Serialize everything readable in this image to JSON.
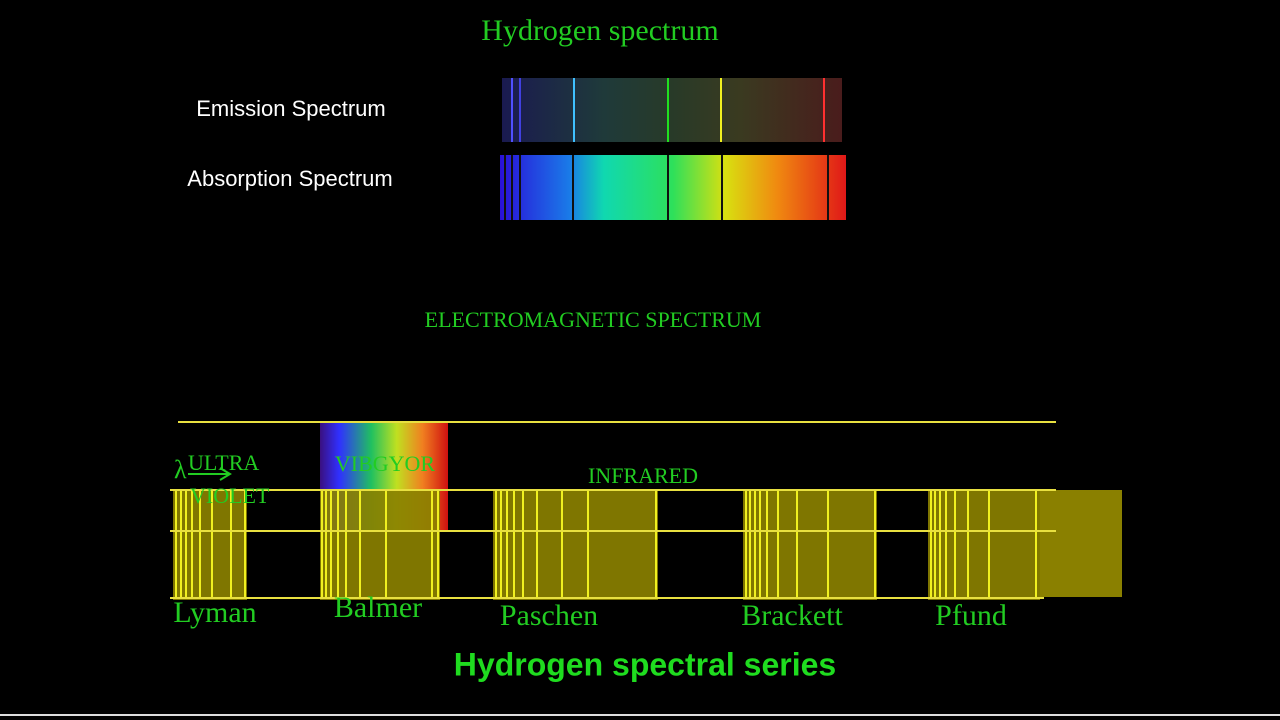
{
  "header": {
    "title": "Hydrogen spectrum"
  },
  "spectra": {
    "emission_label": "Emission Spectrum",
    "absorption_label": "Absorption Spectrum"
  },
  "em_spectrum": {
    "title": "ELECTROMAGNETIC SPECTRUM",
    "lambda": "λ",
    "ultraviolet": [
      "ULTRA",
      "VIOLET"
    ],
    "visible": "VIBGYOR",
    "infrared": "INFRARED"
  },
  "series": [
    "Lyman",
    "Balmer",
    "Paschen",
    "Brackett",
    "Pfund"
  ],
  "footer": {
    "title": "Hydrogen spectral series"
  }
}
